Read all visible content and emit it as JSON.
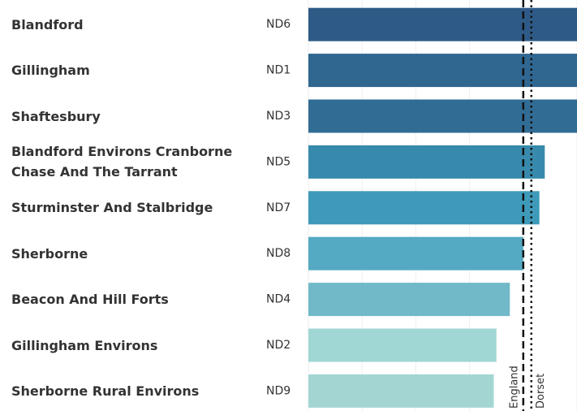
{
  "chart_data": {
    "type": "bar",
    "orientation": "horizontal",
    "categories": [
      "Blandford",
      "Gillingham",
      "Shaftesbury",
      "Blandford Environs Cranborne Chase And The Tarrant",
      "Sturminster And Stalbridge",
      "Sherborne",
      "Beacon And Hill Forts",
      "Gillingham Environs",
      "Sherborne Rural Environs"
    ],
    "codes": [
      "ND6",
      "ND1",
      "ND3",
      "ND5",
      "ND7",
      "ND8",
      "ND4",
      "ND2",
      "ND9"
    ],
    "values": [
      100,
      100,
      100,
      88,
      86,
      80,
      75,
      70,
      69
    ],
    "colors": [
      "#2e5a87",
      "#2f6791",
      "#316c95",
      "#388aac",
      "#3e9ab8",
      "#54aac2",
      "#71b9c8",
      "#a0d6d3",
      "#a3d6d2"
    ],
    "xlim": [
      0,
      100
    ],
    "xticks": [
      0,
      20,
      40,
      60,
      80,
      100
    ],
    "grid": true,
    "reference_lines": [
      {
        "name": "England",
        "value": 80,
        "style": "dashed"
      },
      {
        "name": "Dorset",
        "value": 83,
        "style": "dotted"
      }
    ]
  }
}
